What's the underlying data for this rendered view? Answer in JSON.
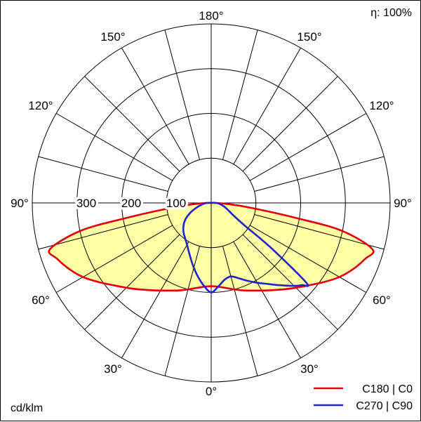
{
  "chart_data": {
    "type": "polar",
    "units": "cd/klm",
    "efficiency_label": "η: 100%",
    "angle_step_deg": 15,
    "angle_tick_labels": [
      "0°",
      "30°",
      "60°",
      "90°",
      "120°",
      "150°",
      "180°"
    ],
    "radial_axis": {
      "tick_labels_left_to_right": [
        "300",
        "200",
        "100"
      ],
      "ring_values": [
        100,
        200,
        300,
        400
      ],
      "max": 400
    },
    "series": [
      {
        "name": "C180 | C0",
        "color": "#e2000f",
        "fill": "#ffffa6",
        "left": {
          "plane": "C180",
          "gamma_deg": [
            0,
            5,
            10,
            15,
            20,
            25,
            30,
            35,
            40,
            45,
            50,
            55,
            60,
            65,
            70,
            74,
            78,
            80,
            83,
            86,
            90
          ],
          "values": [
            186,
            188,
            193,
            200,
            208,
            216,
            226,
            238,
            252,
            268,
            286,
            308,
            331,
            350,
            366,
            375,
            298,
            190,
            90,
            40,
            8
          ]
        },
        "right": {
          "plane": "C0",
          "gamma_deg": [
            0,
            5,
            10,
            15,
            20,
            25,
            30,
            35,
            40,
            45,
            50,
            55,
            60,
            65,
            70,
            74,
            78,
            80,
            83,
            86,
            90
          ],
          "values": [
            186,
            188,
            193,
            200,
            208,
            216,
            226,
            238,
            252,
            268,
            286,
            308,
            331,
            350,
            366,
            375,
            298,
            190,
            90,
            40,
            8
          ]
        }
      },
      {
        "name": "C270 | C90",
        "color": "#2222cc",
        "fill": null,
        "left": {
          "plane": "C270",
          "gamma_deg": [
            0,
            5,
            10,
            15,
            20,
            25,
            30,
            35,
            40,
            45,
            50,
            55,
            60,
            65,
            70,
            75,
            80,
            85,
            90
          ],
          "values": [
            200,
            186,
            168,
            150,
            133,
            119,
            108,
            100,
            94,
            88,
            81,
            73,
            63,
            51,
            39,
            29,
            21,
            15,
            9
          ]
        },
        "right": {
          "plane": "C90",
          "gamma_deg": [
            0,
            5,
            10,
            15,
            20,
            25,
            30,
            35,
            40,
            45,
            48,
            50,
            53,
            56,
            60,
            65,
            70,
            75,
            80,
            85,
            90
          ],
          "values": [
            200,
            187,
            174,
            170,
            179,
            192,
            206,
            221,
            240,
            262,
            274,
            278,
            170,
            90,
            60,
            45,
            36,
            29,
            23,
            17,
            11
          ]
        }
      }
    ]
  }
}
